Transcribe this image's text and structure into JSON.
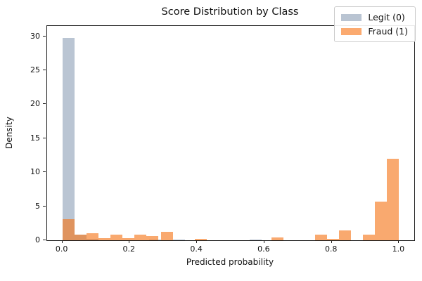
{
  "chart": {
    "title": "Score Distribution by Class",
    "xlabel": "Predicted probability",
    "ylabel": "Density",
    "legend": {
      "items": [
        {
          "label": "Legit (0)",
          "swatch_color": "#b9c4d2"
        },
        {
          "label": "Fraud (1)",
          "swatch_color": "#fbaa70"
        }
      ],
      "position": "upper right"
    }
  },
  "chart_data": {
    "type": "bar",
    "subtype": "histogram-overlaid",
    "title": "Score Distribution by Class",
    "xlabel": "Predicted probability",
    "ylabel": "Density",
    "xlim": [
      -0.045,
      1.045
    ],
    "ylim": [
      0,
      31.5
    ],
    "xticks": [
      0.0,
      0.2,
      0.4,
      0.6,
      0.8,
      1.0
    ],
    "xtick_labels": [
      "0.0",
      "0.2",
      "0.4",
      "0.6",
      "0.8",
      "1.0"
    ],
    "yticks": [
      0,
      5,
      10,
      15,
      20,
      25,
      30
    ],
    "ytick_labels": [
      "0",
      "5",
      "10",
      "15",
      "20",
      "25",
      "30"
    ],
    "grid": false,
    "legend_position": "upper right",
    "bin_width": 0.0357,
    "series": [
      {
        "name": "Legit (0)",
        "color": "#bac5d3",
        "bars": [
          {
            "bin_start": 0.0,
            "density": 29.8
          },
          {
            "bin_start": 0.036,
            "density": 0.8
          },
          {
            "bin_start": 0.071,
            "density": 0.2
          },
          {
            "bin_start": 0.257,
            "density": 0.15
          },
          {
            "bin_start": 0.329,
            "density": 0.15
          },
          {
            "bin_start": 0.557,
            "density": 0.15
          }
        ]
      },
      {
        "name": "Fraud (1)",
        "color": "rgba(246,116,22,0.62)",
        "bars": [
          {
            "bin_start": 0.0,
            "density": 3.1
          },
          {
            "bin_start": 0.036,
            "density": 0.83
          },
          {
            "bin_start": 0.071,
            "density": 1.0
          },
          {
            "bin_start": 0.107,
            "density": 0.28
          },
          {
            "bin_start": 0.143,
            "density": 0.87
          },
          {
            "bin_start": 0.179,
            "density": 0.28
          },
          {
            "bin_start": 0.214,
            "density": 0.85
          },
          {
            "bin_start": 0.25,
            "density": 0.59
          },
          {
            "bin_start": 0.293,
            "density": 1.2
          },
          {
            "bin_start": 0.393,
            "density": 0.25
          },
          {
            "bin_start": 0.62,
            "density": 0.45
          },
          {
            "bin_start": 0.75,
            "density": 0.85
          },
          {
            "bin_start": 0.786,
            "density": 0.22
          },
          {
            "bin_start": 0.821,
            "density": 1.5
          },
          {
            "bin_start": 0.893,
            "density": 0.85
          },
          {
            "bin_start": 0.929,
            "density": 5.65
          },
          {
            "bin_start": 0.964,
            "density": 12.0
          }
        ]
      }
    ]
  }
}
